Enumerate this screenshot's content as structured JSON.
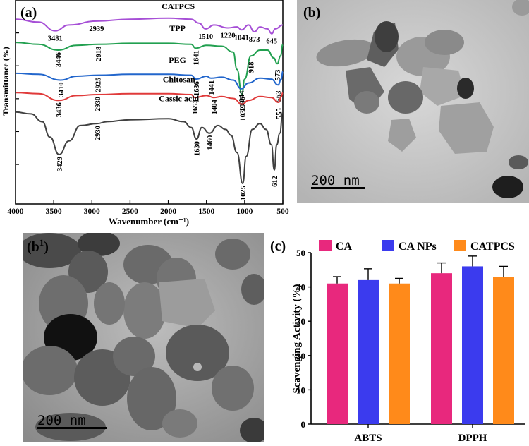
{
  "panels": {
    "a": {
      "label": "(a)"
    },
    "b": {
      "label": "(b)",
      "scale_bar": "200 nm"
    },
    "b1": {
      "label": "(b",
      "label_sup": "1",
      "label_close": ")",
      "scale_bar": "200 nm"
    },
    "c": {
      "label": "(c)"
    }
  },
  "chart_data": [
    {
      "type": "line",
      "panel": "a",
      "title": "",
      "xlabel": "Wavenumber (cm⁻¹)",
      "ylabel": "Transmittance (%)",
      "xlim": [
        4000,
        500
      ],
      "x_reversed": true,
      "xticks": [
        4000,
        3500,
        3000,
        2500,
        2000,
        1500,
        1000,
        500
      ],
      "y_ticks_shown": false,
      "series": [
        {
          "name": "CATPCS",
          "color": "#a64fd6",
          "points": [
            [
              4000,
              0.07
            ],
            [
              3700,
              0.085
            ],
            [
              3481,
              0.13
            ],
            [
              3300,
              0.1
            ],
            [
              2939,
              0.08
            ],
            [
              2500,
              0.07
            ],
            [
              2000,
              0.065
            ],
            [
              1700,
              0.07
            ],
            [
              1600,
              0.09
            ],
            [
              1510,
              0.12
            ],
            [
              1400,
              0.1
            ],
            [
              1220,
              0.115
            ],
            [
              1100,
              0.11
            ],
            [
              1041,
              0.125
            ],
            [
              950,
              0.1
            ],
            [
              873,
              0.135
            ],
            [
              800,
              0.11
            ],
            [
              700,
              0.12
            ],
            [
              645,
              0.145
            ],
            [
              600,
              0.12
            ],
            [
              500,
              0.1
            ]
          ],
          "peaks": [
            {
              "x": 3481,
              "label": "3481"
            },
            {
              "x": 2939,
              "label": "2939"
            },
            {
              "x": 1510,
              "label": "1510"
            },
            {
              "x": 1220,
              "label": "1220"
            },
            {
              "x": 1041,
              "label": "1041"
            },
            {
              "x": 873,
              "label": "873"
            },
            {
              "x": 645,
              "label": "645"
            }
          ]
        },
        {
          "name": "TPP",
          "color": "#22a050",
          "points": [
            [
              4000,
              0.19
            ],
            [
              3700,
              0.2
            ],
            [
              3446,
              0.23
            ],
            [
              3200,
              0.205
            ],
            [
              2918,
              0.2
            ],
            [
              2500,
              0.195
            ],
            [
              2000,
              0.195
            ],
            [
              1700,
              0.2
            ],
            [
              1641,
              0.22
            ],
            [
              1500,
              0.205
            ],
            [
              1300,
              0.21
            ],
            [
              1150,
              0.24
            ],
            [
              1100,
              0.33
            ],
            [
              1036,
              0.46
            ],
            [
              1000,
              0.38
            ],
            [
              918,
              0.26
            ],
            [
              800,
              0.23
            ],
            [
              700,
              0.23
            ],
            [
              620,
              0.27
            ],
            [
              573,
              0.3
            ],
            [
              530,
              0.26
            ],
            [
              500,
              0.2
            ]
          ],
          "peaks": [
            {
              "x": 3446,
              "label": "3446"
            },
            {
              "x": 2918,
              "label": "2918"
            },
            {
              "x": 1641,
              "label": "1641"
            },
            {
              "x": 1036,
              "label": "1036"
            },
            {
              "x": 918,
              "label": "918"
            },
            {
              "x": 573,
              "label": "573"
            }
          ]
        },
        {
          "name": "PEG",
          "color": "#2266cc",
          "points": [
            [
              4000,
              0.35
            ],
            [
              3700,
              0.355
            ],
            [
              3410,
              0.385
            ],
            [
              3200,
              0.365
            ],
            [
              2925,
              0.36
            ],
            [
              2500,
              0.355
            ],
            [
              2000,
              0.355
            ],
            [
              1700,
              0.36
            ],
            [
              1636,
              0.38
            ],
            [
              1500,
              0.365
            ],
            [
              1441,
              0.375
            ],
            [
              1300,
              0.37
            ],
            [
              1150,
              0.385
            ],
            [
              1044,
              0.43
            ],
            [
              950,
              0.4
            ],
            [
              800,
              0.375
            ],
            [
              650,
              0.38
            ],
            [
              563,
              0.41
            ],
            [
              520,
              0.38
            ],
            [
              500,
              0.34
            ]
          ],
          "peaks": [
            {
              "x": 3410,
              "label": "3410"
            },
            {
              "x": 2925,
              "label": "2925"
            },
            {
              "x": 1636,
              "label": "1636"
            },
            {
              "x": 1441,
              "label": "1441"
            },
            {
              "x": 1044,
              "label": "1044"
            },
            {
              "x": 563,
              "label": "563"
            }
          ]
        },
        {
          "name": "Chitosan",
          "color": "#e03a3a",
          "points": [
            [
              4000,
              0.45
            ],
            [
              3700,
              0.455
            ],
            [
              3436,
              0.49
            ],
            [
              3200,
              0.465
            ],
            [
              2930,
              0.46
            ],
            [
              2500,
              0.455
            ],
            [
              2000,
              0.455
            ],
            [
              1700,
              0.46
            ],
            [
              1653,
              0.475
            ],
            [
              1500,
              0.465
            ],
            [
              1404,
              0.475
            ],
            [
              1300,
              0.47
            ],
            [
              1150,
              0.48
            ],
            [
              1032,
              0.51
            ],
            [
              950,
              0.49
            ],
            [
              800,
              0.47
            ],
            [
              650,
              0.475
            ],
            [
              555,
              0.5
            ],
            [
              520,
              0.47
            ],
            [
              500,
              0.45
            ]
          ],
          "peaks": [
            {
              "x": 3436,
              "label": "3436"
            },
            {
              "x": 2930,
              "label": "2930"
            },
            {
              "x": 1653,
              "label": "1653"
            },
            {
              "x": 1404,
              "label": "1404"
            },
            {
              "x": 1032,
              "label": "1032"
            },
            {
              "x": 555,
              "label": "555"
            }
          ]
        },
        {
          "name": "Cassic acid",
          "color": "#404040",
          "points": [
            [
              4000,
              0.55
            ],
            [
              3800,
              0.56
            ],
            [
              3650,
              0.6
            ],
            [
              3550,
              0.68
            ],
            [
              3429,
              0.77
            ],
            [
              3300,
              0.7
            ],
            [
              3150,
              0.62
            ],
            [
              2930,
              0.61
            ],
            [
              2800,
              0.6
            ],
            [
              2500,
              0.59
            ],
            [
              2000,
              0.585
            ],
            [
              1800,
              0.6
            ],
            [
              1700,
              0.63
            ],
            [
              1630,
              0.69
            ],
            [
              1560,
              0.63
            ],
            [
              1460,
              0.66
            ],
            [
              1350,
              0.62
            ],
            [
              1250,
              0.64
            ],
            [
              1180,
              0.67
            ],
            [
              1100,
              0.76
            ],
            [
              1025,
              0.92
            ],
            [
              980,
              0.78
            ],
            [
              900,
              0.64
            ],
            [
              800,
              0.61
            ],
            [
              720,
              0.64
            ],
            [
              650,
              0.72
            ],
            [
              612,
              0.85
            ],
            [
              580,
              0.72
            ],
            [
              540,
              0.66
            ],
            [
              500,
              0.55
            ]
          ],
          "peaks": [
            {
              "x": 3429,
              "label": "3429"
            },
            {
              "x": 2930,
              "label": "2930"
            },
            {
              "x": 1630,
              "label": "1630"
            },
            {
              "x": 1460,
              "label": "1460"
            },
            {
              "x": 1025,
              "label": "1025"
            },
            {
              "x": 612,
              "label": "612"
            }
          ]
        }
      ]
    },
    {
      "type": "bar",
      "panel": "c",
      "title": "",
      "xlabel": "",
      "ylabel": "Scavenging Activity (%)",
      "ylim": [
        0,
        50
      ],
      "yticks": [
        0,
        10,
        20,
        30,
        40,
        50
      ],
      "categories": [
        "ABTS",
        "DPPH"
      ],
      "legend_placement": "top",
      "series": [
        {
          "name": "CA",
          "color": "#e8287d",
          "values": [
            41,
            44
          ],
          "errors": [
            2.0,
            3.0
          ]
        },
        {
          "name": "CA NPs",
          "color": "#3b3bee",
          "values": [
            42,
            46
          ],
          "errors": [
            3.3,
            3.0
          ]
        },
        {
          "name": "CATPCS",
          "color": "#ff8a1a",
          "values": [
            41,
            43
          ],
          "errors": [
            1.5,
            3.0
          ]
        }
      ]
    }
  ]
}
